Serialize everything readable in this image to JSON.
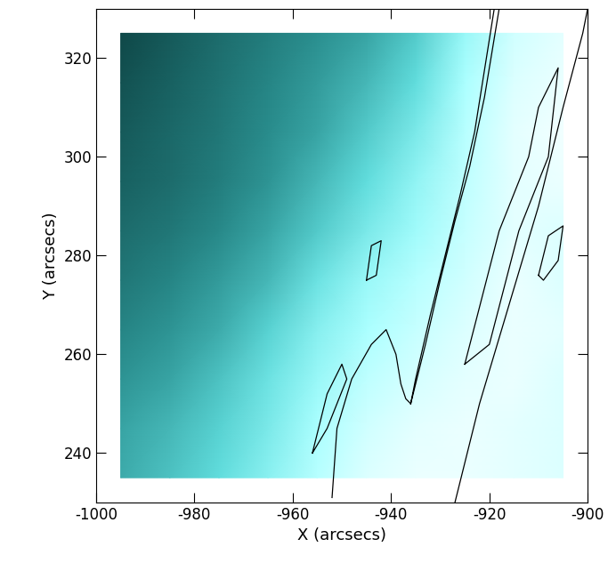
{
  "chart_data": {
    "type": "heatmap",
    "x_label": "X (arcsecs)",
    "y_label": "Y (arcsecs)",
    "xlim": [
      -1000,
      -900
    ],
    "ylim": [
      230,
      330
    ],
    "xticks": [
      -1000,
      -980,
      -960,
      -940,
      -920,
      -900
    ],
    "yticks": [
      240,
      260,
      280,
      300,
      320
    ],
    "cells": [
      [
        42,
        48,
        55,
        66,
        78,
        88,
        92,
        92,
        90,
        88
      ],
      [
        40,
        45,
        52,
        62,
        75,
        85,
        90,
        92,
        90,
        88
      ],
      [
        36,
        40,
        48,
        58,
        70,
        80,
        86,
        90,
        92,
        88
      ],
      [
        32,
        36,
        42,
        52,
        65,
        75,
        82,
        88,
        92,
        90
      ],
      [
        28,
        32,
        38,
        45,
        58,
        70,
        78,
        85,
        92,
        88
      ],
      [
        25,
        28,
        33,
        40,
        50,
        62,
        72,
        82,
        90,
        88
      ],
      [
        22,
        25,
        30,
        36,
        45,
        55,
        68,
        80,
        90,
        92
      ],
      [
        20,
        24,
        28,
        34,
        40,
        50,
        62,
        78,
        90,
        94
      ],
      [
        18,
        22,
        27,
        32,
        38,
        45,
        55,
        75,
        88,
        92
      ],
      [
        15,
        20,
        25,
        30,
        35,
        40,
        50,
        70,
        85,
        90
      ]
    ],
    "contour_color": "#000000",
    "contours": [
      {
        "x": [
          -927,
          -922,
          -916,
          -910,
          -905,
          -901,
          -900
        ],
        "y": [
          230,
          250,
          270,
          290,
          310,
          325,
          330
        ]
      },
      {
        "x": [
          -925,
          -918,
          -912,
          -910,
          -906,
          -908,
          -914,
          -920,
          -925
        ],
        "y": [
          258,
          285,
          300,
          310,
          318,
          300,
          285,
          262,
          258
        ]
      },
      {
        "x": [
          -936,
          -933,
          -930,
          -927,
          -924,
          -921,
          -918,
          -919,
          -923,
          -926,
          -929,
          -932,
          -935,
          -936
        ],
        "y": [
          250,
          262,
          275,
          287,
          298,
          312,
          330,
          330,
          305,
          292,
          280,
          268,
          255,
          250
        ]
      },
      {
        "x": [
          -952,
          -951,
          -948,
          -944,
          -941,
          -939,
          -938,
          -937,
          -936
        ],
        "y": [
          231,
          245,
          255,
          262,
          265,
          260,
          254,
          251,
          250
        ]
      },
      {
        "x": [
          -945,
          -944,
          -942,
          -943,
          -945
        ],
        "y": [
          275,
          282,
          283,
          276,
          275
        ]
      },
      {
        "x": [
          -956,
          -953,
          -950,
          -949,
          -953,
          -956
        ],
        "y": [
          240,
          252,
          258,
          255,
          245,
          240
        ]
      },
      {
        "x": [
          -910,
          -908,
          -905,
          -906,
          -909,
          -910
        ],
        "y": [
          276,
          284,
          286,
          279,
          275,
          276
        ]
      }
    ]
  }
}
